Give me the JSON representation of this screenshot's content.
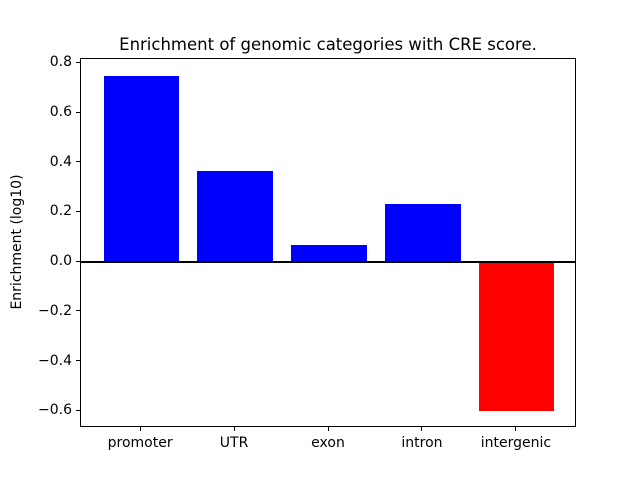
{
  "chart_data": {
    "type": "bar",
    "title": "Enrichment of genomic categories with CRE score.",
    "xlabel": "",
    "ylabel": "Enrichment (log10)",
    "categories": [
      "promoter",
      "UTR",
      "exon",
      "intron",
      "intergenic"
    ],
    "values": [
      0.75,
      0.365,
      0.07,
      0.235,
      -0.6
    ],
    "bar_colors": [
      "#0000ff",
      "#0000ff",
      "#0000ff",
      "#0000ff",
      "#ff0000"
    ],
    "bar_width": 0.8,
    "ylim": [
      -0.6675,
      0.8175
    ],
    "xlim": [
      -0.64,
      4.64
    ],
    "y_ticks": [
      0.8,
      0.6,
      0.4,
      0.2,
      0.0,
      -0.2,
      -0.4,
      -0.6
    ],
    "y_tick_labels": [
      "0.8",
      "0.6",
      "0.4",
      "0.2",
      "0.0",
      "−0.2",
      "−0.4",
      "−0.6"
    ],
    "grid": false,
    "legend": "none",
    "zero_line": true,
    "zero_line_color": "#000000",
    "positive_color": "#0000ff",
    "negative_color": "#ff0000",
    "background_color": "#ffffff",
    "axis_color": "#000000"
  }
}
